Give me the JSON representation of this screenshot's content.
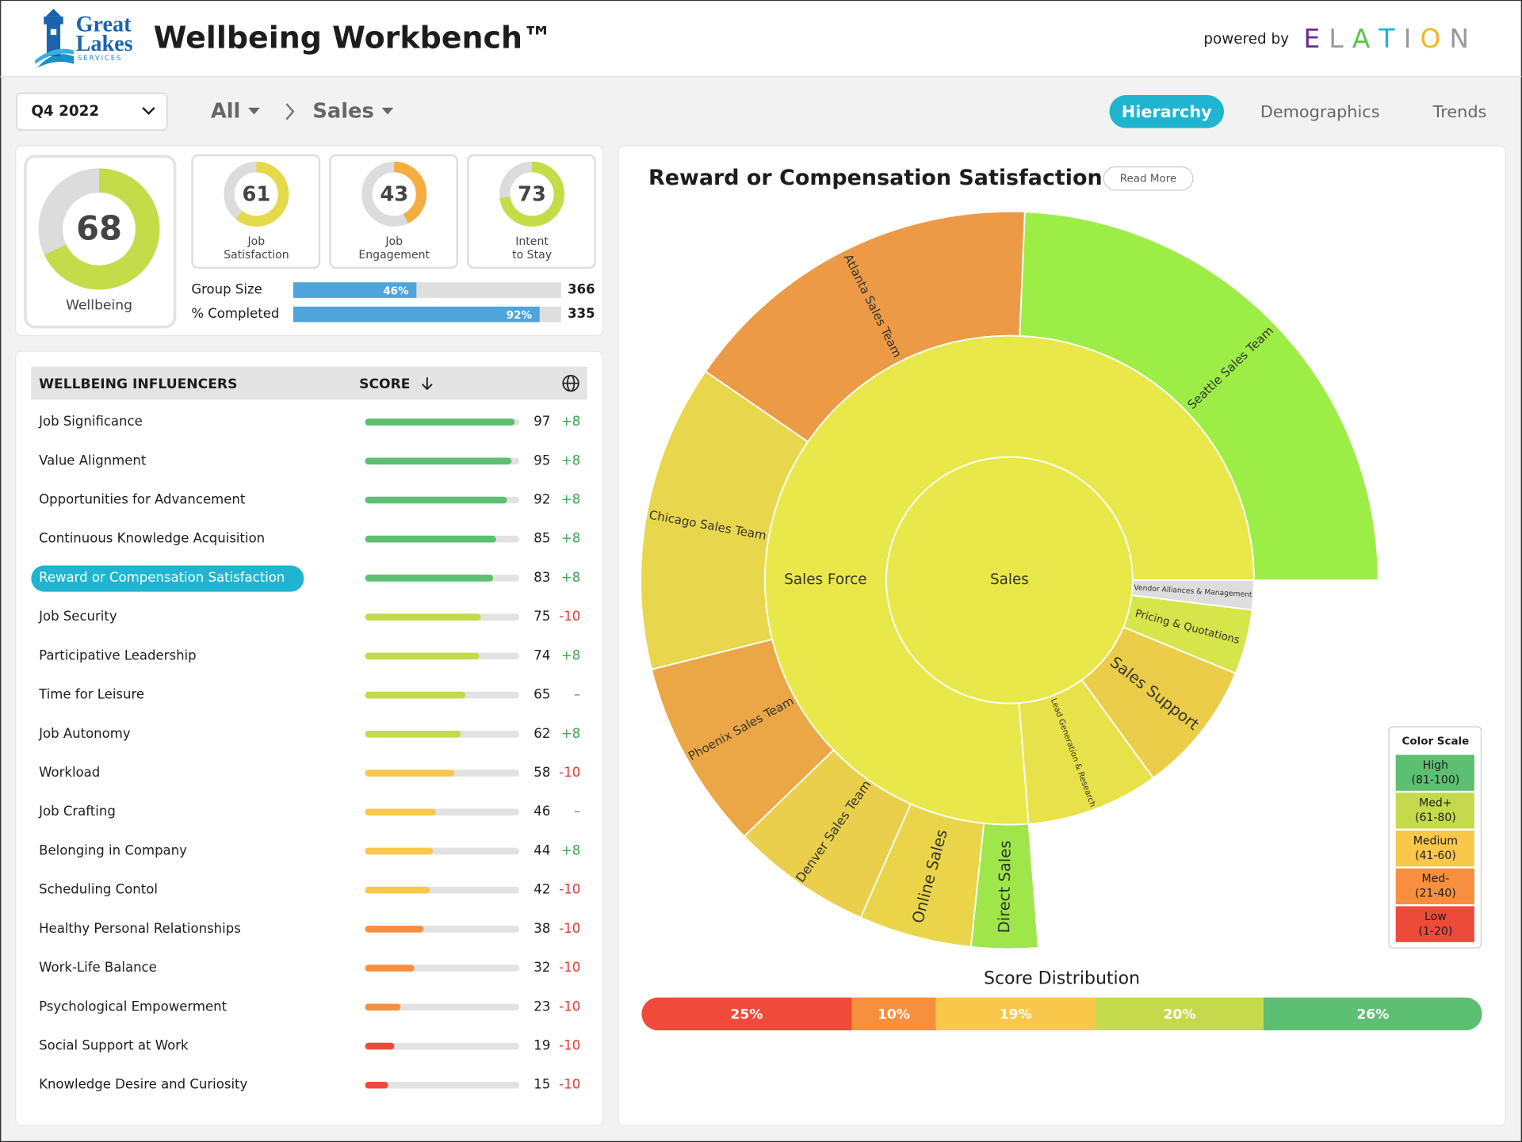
{
  "header": {
    "logo": {
      "line1": "Great",
      "line2": "Lakes",
      "line3": "SERVICES"
    },
    "title": "Wellbeing Workbench™",
    "powered_by": "powered by",
    "brand": "ELATION"
  },
  "toolbar": {
    "period": "Q4 2022",
    "breadcrumb": [
      "All",
      "Sales"
    ],
    "tabs": [
      "Hierarchy",
      "Demographics",
      "Trends"
    ],
    "active_tab": 0
  },
  "summary": {
    "wellbeing": {
      "value": 68,
      "label": "Wellbeing",
      "color": "#c5dc4a"
    },
    "scores": [
      {
        "value": 61,
        "label": [
          "Job",
          "Satisfaction"
        ],
        "color": "#e5d94b"
      },
      {
        "value": 43,
        "label": [
          "Job",
          "Engagement"
        ],
        "color": "#f6ad40"
      },
      {
        "value": 73,
        "label": [
          "Intent",
          "to Stay"
        ],
        "color": "#c5dc4a"
      }
    ],
    "bars": [
      {
        "label": "Group Size",
        "percent": 46,
        "percent_label": "46%",
        "count": 366
      },
      {
        "label": "% Completed",
        "percent": 92,
        "percent_label": "92%",
        "count": 335
      }
    ],
    "bar_color": "#4fa4dc"
  },
  "influencers": {
    "headers": [
      "WELLBEING INFLUENCERS",
      "SCORE"
    ],
    "selected": 4,
    "rows": [
      {
        "name": "Job Significance",
        "score": 97,
        "change": "+8"
      },
      {
        "name": "Value Alignment",
        "score": 95,
        "change": "+8"
      },
      {
        "name": "Opportunities for Advancement",
        "score": 92,
        "change": "+8"
      },
      {
        "name": "Continuous Knowledge Acquisition",
        "score": 85,
        "change": "+8"
      },
      {
        "name": "Reward or Compensation Satisfaction",
        "score": 83,
        "change": "+8"
      },
      {
        "name": "Job Security",
        "score": 75,
        "change": "-10"
      },
      {
        "name": "Participative Leadership",
        "score": 74,
        "change": "+8"
      },
      {
        "name": "Time for Leisure",
        "score": 65,
        "change": "–"
      },
      {
        "name": "Job Autonomy",
        "score": 62,
        "change": "+8"
      },
      {
        "name": "Workload",
        "score": 58,
        "change": "-10"
      },
      {
        "name": "Job Crafting",
        "score": 46,
        "change": "–"
      },
      {
        "name": "Belonging in Company",
        "score": 44,
        "change": "+8"
      },
      {
        "name": "Scheduling Contol",
        "score": 42,
        "change": "-10"
      },
      {
        "name": "Healthy Personal Relationships",
        "score": 38,
        "change": "-10"
      },
      {
        "name": "Work-Life Balance",
        "score": 32,
        "change": "-10"
      },
      {
        "name": "Psychological Empowerment",
        "score": 23,
        "change": "-10"
      },
      {
        "name": "Social Support at Work",
        "score": 19,
        "change": "-10"
      },
      {
        "name": "Knowledge Desire and Curiosity",
        "score": 15,
        "change": "-10"
      }
    ]
  },
  "chart": {
    "title": "Reward or Compensation Satisfaction",
    "read_more": "Read More",
    "sunburst": {
      "name": "Sales",
      "color": "#e9e84a",
      "children": [
        {
          "name": "Sales Force",
          "color": "#e9e84a",
          "children": [
            {
              "name": "Direct Sales",
              "color": "#9ee64a",
              "size": 10.5
            },
            {
              "name": "Online Sales",
              "color": "#ead54a",
              "size": 17.8
            },
            {
              "name": "Denver Sales Team",
              "color": "#e9cf4c",
              "size": 22.2
            },
            {
              "name": "Phoenix Sales Team",
              "color": "#eba745",
              "size": 30
            },
            {
              "name": "Chicago Sales Team",
              "color": "#e8d64c",
              "size": 48.5
            },
            {
              "name": "Atlanta Sales Team",
              "color": "#ec9a45",
              "size": 57.9
            },
            {
              "name": "Seattle Sales Team",
              "color": "#9ded47",
              "size": 87.6
            }
          ]
        },
        {
          "name": "Vendor Alliances & Management",
          "color": "#dddddd",
          "size": 7
        },
        {
          "name": "Pricing & Quotations",
          "color": "#d6e54a",
          "size": 15.4
        },
        {
          "name": "Sales Support",
          "color": "#eccd4a",
          "size": 31.6
        },
        {
          "name": "Lead Generation & Research",
          "color": "#e8e24a",
          "size": 31.5
        }
      ]
    },
    "color_scale": {
      "title": "Color Scale",
      "levels": [
        {
          "label": "High",
          "range": "(81-100)",
          "min": 81,
          "max": 100,
          "color": "#5dbf72"
        },
        {
          "label": "Med+",
          "range": "(61-80)",
          "min": 61,
          "max": 80,
          "color": "#c5d94c"
        },
        {
          "label": "Medium",
          "range": "(41-60)",
          "min": 41,
          "max": 60,
          "color": "#f9c74a"
        },
        {
          "label": "Med-",
          "range": "(21-40)",
          "min": 21,
          "max": 40,
          "color": "#f78f3f"
        },
        {
          "label": "Low",
          "range": "(1-20)",
          "min": 1,
          "max": 20,
          "color": "#ee4a3a"
        }
      ]
    },
    "distribution": {
      "title": "Score Distribution",
      "values": [
        25,
        10,
        19,
        20,
        26
      ],
      "value_labels": [
        "25%",
        "10%",
        "19%",
        "20%",
        "26%"
      ],
      "colors": [
        "#ef4a3a",
        "#f7903e",
        "#f9c74a",
        "#c5d94c",
        "#5dbf72"
      ]
    }
  }
}
